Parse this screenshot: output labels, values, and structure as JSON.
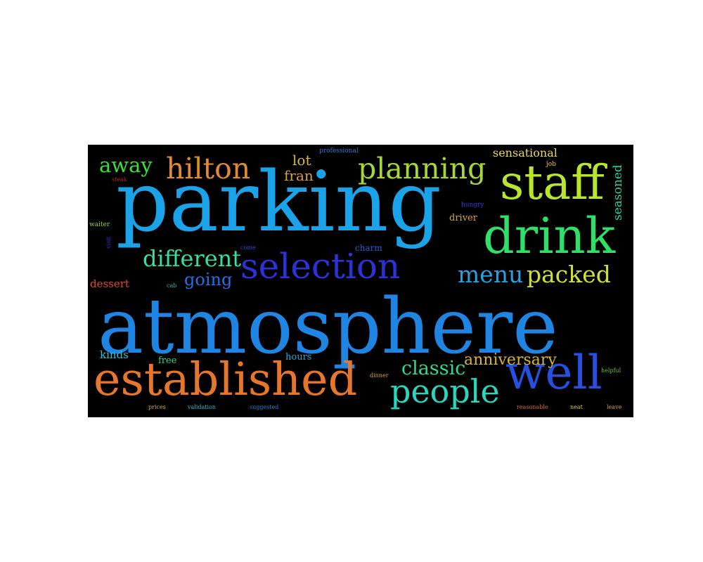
{
  "colors": {
    "background": "#000000",
    "page": "#ffffff"
  },
  "words": [
    {
      "text": "atmosphere",
      "color": "#1f85e3"
    },
    {
      "text": "parking",
      "color": "#1aa3e8"
    },
    {
      "text": "established",
      "color": "#e6762a"
    },
    {
      "text": "well",
      "color": "#2650e0"
    },
    {
      "text": "selection",
      "color": "#2a32d8"
    },
    {
      "text": "drink",
      "color": "#2ee06a"
    },
    {
      "text": "staff",
      "color": "#b7e62c"
    },
    {
      "text": "people",
      "color": "#29d6c0"
    },
    {
      "text": "planning",
      "color": "#a6d63a"
    },
    {
      "text": "hilton",
      "color": "#e08a32"
    },
    {
      "text": "different",
      "color": "#36dfa8"
    },
    {
      "text": "packed",
      "color": "#cfe03c"
    },
    {
      "text": "menu",
      "color": "#2aa0e0"
    },
    {
      "text": "away",
      "color": "#3ae03c"
    },
    {
      "text": "classic",
      "color": "#2edc8e"
    },
    {
      "text": "anniversary",
      "color": "#d6b43a"
    },
    {
      "text": "going",
      "color": "#2a6ee0"
    },
    {
      "text": "lot",
      "color": "#d6b440"
    },
    {
      "text": "fran",
      "color": "#dca13a"
    },
    {
      "text": "sensational",
      "color": "#e8dc48"
    },
    {
      "text": "seasoned",
      "color": "#2ad69a"
    },
    {
      "text": "dessert",
      "color": "#e04a2a"
    },
    {
      "text": "kinds",
      "color": "#2ac4d6"
    },
    {
      "text": "hours",
      "color": "#2aa8d6"
    },
    {
      "text": "free",
      "color": "#2ad48a"
    },
    {
      "text": "driver",
      "color": "#d6a82a"
    },
    {
      "text": "charm",
      "color": "#2a5cd6"
    },
    {
      "text": "professional",
      "color": "#2a7cd6"
    },
    {
      "text": "job",
      "color": "#e0c84a"
    },
    {
      "text": "hungry",
      "color": "#2a3cd6"
    },
    {
      "text": "steak",
      "color": "#b02a2a"
    },
    {
      "text": "waiter",
      "color": "#8ad63a"
    },
    {
      "text": "visit",
      "color": "#3a2ad6"
    },
    {
      "text": "come",
      "color": "#2a4cd6"
    },
    {
      "text": "cab",
      "color": "#2ab8a0"
    },
    {
      "text": "dinner",
      "color": "#d6a03a"
    },
    {
      "text": "helpful",
      "color": "#6ac43a"
    },
    {
      "text": "prices",
      "color": "#d6a83a"
    },
    {
      "text": "validation",
      "color": "#2ab8c8"
    },
    {
      "text": "suggested",
      "color": "#2a7cd6"
    },
    {
      "text": "reasonable",
      "color": "#d66a2a"
    },
    {
      "text": "neat",
      "color": "#d6c83a"
    },
    {
      "text": "leave",
      "color": "#d6a03a"
    }
  ]
}
